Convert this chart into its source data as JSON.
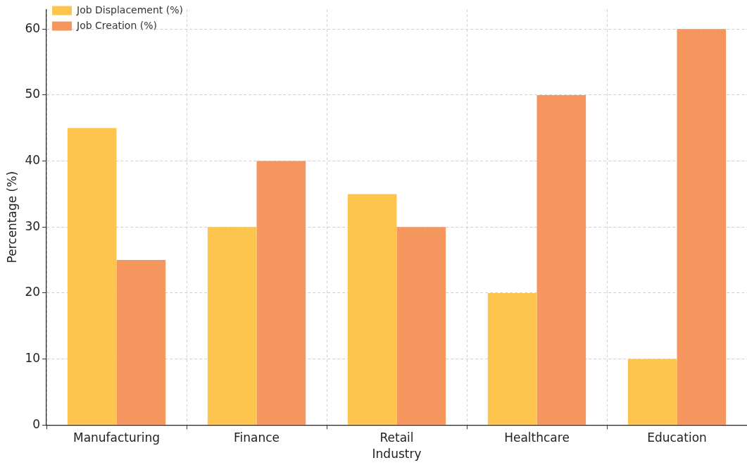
{
  "chart_data": {
    "type": "bar",
    "xlabel": "Industry",
    "ylabel": "Percentage (%)",
    "categories": [
      "Manufacturing",
      "Finance",
      "Retail",
      "Healthcare",
      "Education"
    ],
    "series": [
      {
        "name": "Job Displacement (%)",
        "color": "#fdc44e",
        "values": [
          45,
          30,
          35,
          20,
          10
        ]
      },
      {
        "name": "Job Creation (%)",
        "color": "#f5965f",
        "values": [
          25,
          40,
          30,
          50,
          60
        ]
      }
    ],
    "ylim": [
      0,
      63
    ],
    "yticks": [
      0,
      10,
      20,
      30,
      40,
      50,
      60
    ],
    "grid": true,
    "legend": "top left"
  }
}
